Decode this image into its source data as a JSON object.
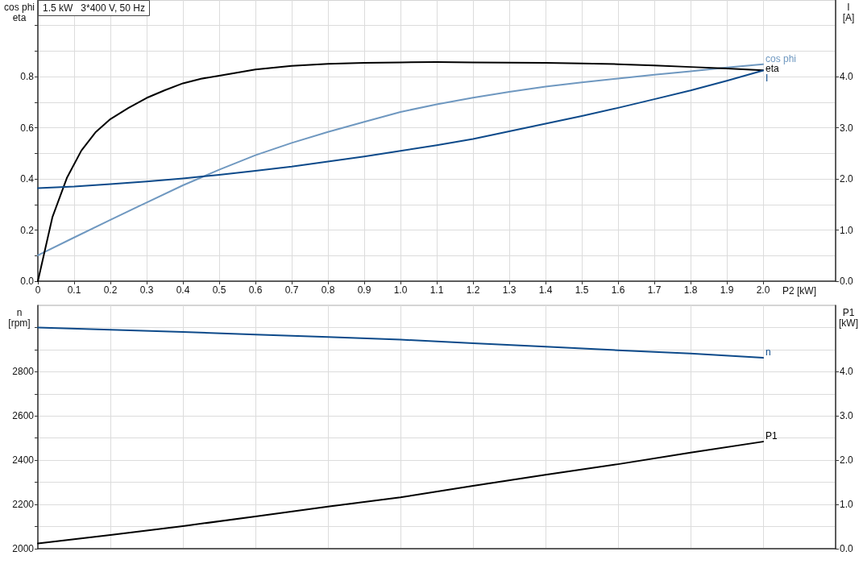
{
  "chart_data": [
    {
      "type": "line",
      "title": "1.5 kW   3*400 V, 50 Hz",
      "xlabel": "P2 [kW]",
      "ylabel": "cos phi\neta",
      "y2label": "I\n[A]",
      "xlim": [
        0,
        2.2
      ],
      "xticks": [
        0,
        0.1,
        0.2,
        0.3,
        0.4,
        0.5,
        0.6,
        0.7,
        0.8,
        0.9,
        {
          "value": 1,
          "label": "1.0"
        },
        1.1,
        1.2,
        1.3,
        1.4,
        1.5,
        1.6,
        1.7,
        1.8,
        1.9,
        {
          "value": 2,
          "label": "2.0"
        }
      ],
      "ylim": [
        0,
        1.1
      ],
      "yticks": [
        {
          "value": 0,
          "label": "0.0"
        },
        {
          "value": 0.1,
          "label": null
        },
        0.2,
        {
          "value": 0.3,
          "label": null
        },
        0.4,
        {
          "value": 0.5,
          "label": null
        },
        0.6,
        {
          "value": 0.7,
          "label": null
        },
        0.8,
        {
          "value": 0.9,
          "label": null
        },
        {
          "value": 1,
          "label": null
        }
      ],
      "y2lim": [
        0,
        5.5
      ],
      "y2ticks": [
        {
          "value": 0,
          "label": "0.0"
        },
        {
          "value": 1,
          "label": "1.0"
        },
        {
          "value": 2,
          "label": "2.0"
        },
        {
          "value": 3,
          "label": "3.0"
        },
        {
          "value": 4,
          "label": "4.0"
        }
      ],
      "grid": true,
      "series": [
        {
          "name": "cos phi",
          "color": "#6f98c0",
          "x": [
            0,
            0.1,
            0.2,
            0.3,
            0.4,
            0.5,
            0.6,
            0.7,
            0.8,
            0.9,
            1.0,
            1.1,
            1.2,
            1.3,
            1.4,
            1.5,
            1.6,
            1.7,
            1.8,
            1.9,
            2.0
          ],
          "values": [
            0.101,
            0.171,
            0.24,
            0.308,
            0.375,
            0.436,
            0.493,
            0.541,
            0.584,
            0.623,
            0.662,
            0.692,
            0.718,
            0.741,
            0.761,
            0.778,
            0.793,
            0.808,
            0.821,
            0.836,
            0.849
          ]
        },
        {
          "name": "eta",
          "color": "#000000",
          "x": [
            0,
            0.04,
            0.08,
            0.12,
            0.16,
            0.2,
            0.25,
            0.3,
            0.35,
            0.4,
            0.45,
            0.5,
            0.6,
            0.7,
            0.8,
            0.9,
            1.0,
            1.1,
            1.2,
            1.3,
            1.4,
            1.5,
            1.6,
            1.7,
            1.8,
            1.9,
            2.0
          ],
          "values": [
            0,
            0.25,
            0.404,
            0.511,
            0.584,
            0.634,
            0.678,
            0.717,
            0.747,
            0.774,
            0.792,
            0.804,
            0.828,
            0.842,
            0.85,
            0.854,
            0.856,
            0.857,
            0.856,
            0.855,
            0.854,
            0.852,
            0.849,
            0.844,
            0.838,
            0.832,
            0.825
          ]
        },
        {
          "name": "I",
          "color": "#0d4a8a",
          "axis": "y2",
          "x": [
            0,
            0.1,
            0.2,
            0.3,
            0.4,
            0.5,
            0.6,
            0.7,
            0.8,
            0.9,
            1.0,
            1.1,
            1.2,
            1.3,
            1.4,
            1.5,
            1.6,
            1.7,
            1.8,
            1.9,
            2.0
          ],
          "values": [
            1.82,
            1.85,
            1.9,
            1.95,
            2.01,
            2.08,
            2.16,
            2.24,
            2.34,
            2.44,
            2.55,
            2.66,
            2.78,
            2.93,
            3.08,
            3.23,
            3.39,
            3.56,
            3.73,
            3.92,
            4.12
          ]
        }
      ]
    },
    {
      "type": "line",
      "ylabel": "n\n[rpm]",
      "y2label": "P1\n[kW]",
      "xlim": [
        0,
        2.2
      ],
      "xticks": [
        0,
        0.2,
        0.4,
        0.6,
        0.8,
        1,
        1.2,
        1.4,
        1.6,
        1.8,
        2
      ],
      "ylim": [
        2000,
        3100
      ],
      "yticks": [
        2000,
        {
          "value": 2100,
          "label": null
        },
        2200,
        {
          "value": 2300,
          "label": null
        },
        2400,
        {
          "value": 2500,
          "label": null
        },
        2600,
        {
          "value": 2700,
          "label": null
        },
        2800,
        {
          "value": 2900,
          "label": null
        },
        {
          "value": 3000,
          "label": null
        }
      ],
      "y2lim": [
        0,
        5.5
      ],
      "y2ticks": [
        {
          "value": 0,
          "label": "0.0"
        },
        {
          "value": 1,
          "label": "1.0"
        },
        {
          "value": 2,
          "label": "2.0"
        },
        {
          "value": 3,
          "label": "3.0"
        },
        {
          "value": 4,
          "label": "4.0"
        }
      ],
      "grid": true,
      "tick_labels": "y",
      "series": [
        {
          "name": "n",
          "color": "#0d4a8a",
          "x": [
            0,
            0.2,
            0.4,
            0.6,
            0.8,
            1.0,
            1.2,
            1.4,
            1.6,
            1.8,
            2.0
          ],
          "values": [
            3000,
            2990,
            2980,
            2968,
            2957,
            2945,
            2929,
            2913,
            2897,
            2882,
            2863
          ]
        },
        {
          "name": "P1",
          "color": "#000000",
          "axis": "y2",
          "x": [
            0,
            0.2,
            0.4,
            0.6,
            0.8,
            1.0,
            1.2,
            1.4,
            1.6,
            1.8,
            2.0
          ],
          "values": [
            0.12,
            0.31,
            0.51,
            0.73,
            0.95,
            1.16,
            1.42,
            1.67,
            1.91,
            2.17,
            2.42
          ]
        }
      ]
    }
  ]
}
